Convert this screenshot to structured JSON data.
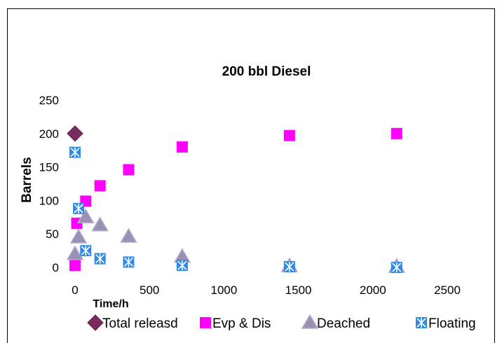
{
  "chart_data": {
    "type": "scatter",
    "title": "200 bbl Diesel",
    "xlabel": "Time/h",
    "ylabel": "Barrels",
    "xlim": [
      0,
      2500
    ],
    "ylim": [
      0,
      250
    ],
    "x_ticks": [
      "0",
      "500",
      "1000",
      "1500",
      "2000",
      "2500"
    ],
    "y_ticks": [
      "0",
      "50",
      "100",
      "150",
      "200",
      "250"
    ],
    "grid": false,
    "legend_position": "bottom",
    "series": [
      {
        "name": "Total releasd",
        "marker": "diamond",
        "color": "#7B2C5E",
        "points": [
          [
            0,
            200
          ]
        ]
      },
      {
        "name": "Evp & Dis",
        "marker": "square",
        "color": "#FF00FF",
        "points": [
          [
            0,
            3
          ],
          [
            12,
            66
          ],
          [
            72,
            99
          ],
          [
            168,
            122
          ],
          [
            360,
            146
          ],
          [
            720,
            180
          ],
          [
            1440,
            197
          ],
          [
            2160,
            200
          ]
        ]
      },
      {
        "name": "Deached",
        "marker": "triangle",
        "color": "#9A90B0",
        "points": [
          [
            0,
            20
          ],
          [
            24,
            45
          ],
          [
            72,
            75
          ],
          [
            168,
            63
          ],
          [
            360,
            46
          ],
          [
            720,
            16
          ],
          [
            1440,
            2
          ],
          [
            2160,
            1
          ]
        ]
      },
      {
        "name": "Floating",
        "marker": "asterisk-square",
        "color": "#2E8BE6",
        "points": [
          [
            0,
            172
          ],
          [
            24,
            88
          ],
          [
            72,
            25
          ],
          [
            168,
            13
          ],
          [
            360,
            8
          ],
          [
            720,
            3
          ],
          [
            1440,
            1
          ],
          [
            2160,
            0
          ]
        ]
      }
    ]
  }
}
